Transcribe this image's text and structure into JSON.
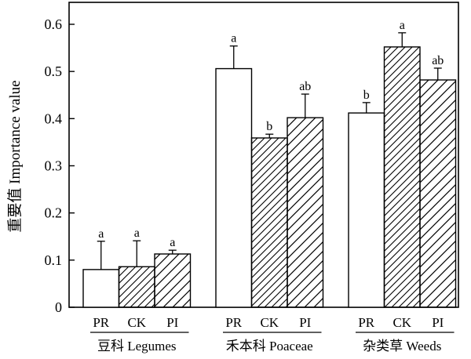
{
  "chart_data": {
    "type": "bar",
    "title": "",
    "xlabel": "",
    "ylabel": "重要值 Importance value",
    "ylim": [
      0,
      0.6
    ],
    "yticks": [
      "0",
      "0.1",
      "0.2",
      "0.3",
      "0.4",
      "0.5",
      "0.6"
    ],
    "grid": false,
    "legend": "none",
    "treatments": [
      "PR",
      "CK",
      "PI"
    ],
    "patterns": {
      "PR": "empty",
      "CK": "dense-diagonal-hatch",
      "PI": "diagonal-hatch"
    },
    "categories": [
      "豆科 Legumes",
      "禾本科 Poaceae",
      "杂类草 Weeds"
    ],
    "groups": [
      {
        "label": "豆科 Legumes",
        "bars": [
          {
            "treatment": "PR",
            "value": 0.08,
            "error": 0.06,
            "letter": "a"
          },
          {
            "treatment": "CK",
            "value": 0.086,
            "error": 0.055,
            "letter": "a"
          },
          {
            "treatment": "PI",
            "value": 0.113,
            "error": 0.008,
            "letter": "a"
          }
        ]
      },
      {
        "label": "禾本科 Poaceae",
        "bars": [
          {
            "treatment": "PR",
            "value": 0.506,
            "error": 0.048,
            "letter": "a"
          },
          {
            "treatment": "CK",
            "value": 0.359,
            "error": 0.008,
            "letter": "b"
          },
          {
            "treatment": "PI",
            "value": 0.402,
            "error": 0.05,
            "letter": "ab"
          }
        ]
      },
      {
        "label": "杂类草 Weeds",
        "bars": [
          {
            "treatment": "PR",
            "value": 0.412,
            "error": 0.022,
            "letter": "b"
          },
          {
            "treatment": "CK",
            "value": 0.552,
            "error": 0.03,
            "letter": "a"
          },
          {
            "treatment": "PI",
            "value": 0.482,
            "error": 0.025,
            "letter": "ab"
          }
        ]
      }
    ]
  }
}
